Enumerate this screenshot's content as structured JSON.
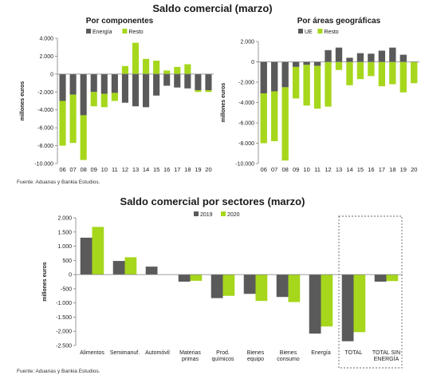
{
  "header": {
    "title": "Saldo comercial (marzo)",
    "bottom_title": "Saldo comercial por sectores (marzo)",
    "source_top": "Fuente: Aduanas y Bankia Estudios.",
    "source_bottom": "Fuente: Aduanas y Bankia Estudios."
  },
  "colors": {
    "dark": "#5a5a5a",
    "green": "#a6d71c",
    "axis": "#7f7f7f"
  },
  "chart_data": [
    {
      "id": "componentes",
      "type": "bar",
      "stacked": true,
      "title": "Por componentes",
      "ylabel": "millones euros",
      "ylim": [
        -10000,
        4000
      ],
      "yticks": [
        4000,
        2000,
        0,
        -2000,
        -4000,
        -6000,
        -8000,
        -10000
      ],
      "ytick_labels": [
        "4.000",
        "2.000",
        "0",
        "-2.000",
        "-4.000",
        "-6.000",
        "-8.000",
        "-10.000"
      ],
      "categories": [
        "06",
        "07",
        "08",
        "09",
        "10",
        "11",
        "12",
        "13",
        "14",
        "15",
        "16",
        "17",
        "18",
        "19",
        "20"
      ],
      "legend_position": "top",
      "series": [
        {
          "name": "Energía",
          "color": "#5a5a5a",
          "values": [
            -3000,
            -2300,
            -4600,
            -2000,
            -2200,
            -2100,
            -3200,
            -3600,
            -3700,
            -2400,
            -1300,
            -1500,
            -1600,
            -1800,
            -1800
          ]
        },
        {
          "name": "Resto",
          "color": "#a6d71c",
          "values": [
            -5000,
            -5400,
            -5000,
            -1600,
            -1500,
            -900,
            900,
            3500,
            1700,
            1500,
            400,
            800,
            1100,
            -200,
            -200
          ]
        }
      ]
    },
    {
      "id": "areas",
      "type": "bar",
      "stacked": true,
      "title": "Por áreas geográficas",
      "ylabel": "millones euros",
      "ylim": [
        -10000,
        2000
      ],
      "yticks": [
        2000,
        0,
        -2000,
        -4000,
        -6000,
        -8000,
        -10000
      ],
      "ytick_labels": [
        "2.000",
        "0",
        "-2.000",
        "-4.000",
        "-6.000",
        "-8.000",
        "-10.000"
      ],
      "categories": [
        "06",
        "07",
        "08",
        "09",
        "10",
        "11",
        "12",
        "13",
        "14",
        "15",
        "16",
        "17",
        "18",
        "19",
        "20"
      ],
      "legend_position": "top",
      "series": [
        {
          "name": "UE",
          "color": "#5a5a5a",
          "values": [
            -3100,
            -2900,
            -2500,
            -500,
            -300,
            -400,
            1150,
            1400,
            400,
            850,
            800,
            1100,
            1400,
            700,
            0
          ]
        },
        {
          "name": "Resto",
          "color": "#a6d71c",
          "values": [
            -4900,
            -4900,
            -7200,
            -3100,
            -4000,
            -4200,
            -4400,
            -800,
            -2300,
            -1700,
            -1400,
            -2400,
            -2200,
            -3000,
            -2100
          ]
        }
      ]
    },
    {
      "id": "sectores",
      "type": "bar",
      "title": "Saldo comercial por sectores (marzo)",
      "ylabel": "millones euros",
      "ylim": [
        -2500,
        2000
      ],
      "yticks": [
        2000,
        1500,
        1000,
        500,
        0,
        -500,
        -1000,
        -1500,
        -2000,
        -2500
      ],
      "ytick_labels": [
        "2.000",
        "1.500",
        "1.000",
        "500",
        "0",
        "-500",
        "-1.000",
        "-1.500",
        "-2.000",
        "-2.500"
      ],
      "categories": [
        [
          "Alimentos"
        ],
        [
          "Semimanuf."
        ],
        [
          "Automóvil"
        ],
        [
          "Materias",
          "primas"
        ],
        [
          "Prod.",
          "químicos"
        ],
        [
          "Bienes",
          "equipo"
        ],
        [
          "Bienes",
          "consumo"
        ],
        [
          "Energía"
        ],
        [
          "TOTAL"
        ],
        [
          "TOTAL SIN",
          "ENERGÍA"
        ]
      ],
      "legend_position": "top",
      "highlight_box": "TOTAL, TOTAL SIN ENERGÍA",
      "series": [
        {
          "name": "2019",
          "color": "#5a5a5a",
          "values": [
            1300,
            480,
            280,
            -250,
            -830,
            -680,
            -790,
            -2080,
            -2350,
            -250
          ]
        },
        {
          "name": "2020",
          "color": "#a6d71c",
          "values": [
            1680,
            610,
            0,
            -220,
            -750,
            -930,
            -970,
            -1830,
            -2030,
            -230
          ]
        }
      ]
    }
  ]
}
